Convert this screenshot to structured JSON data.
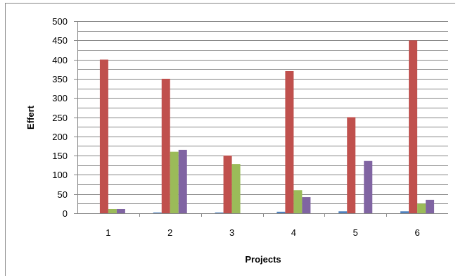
{
  "chart_data": {
    "type": "bar",
    "title": "",
    "xlabel": "Projects",
    "ylabel": "Effert",
    "categories": [
      "1",
      "2",
      "3",
      "4",
      "5",
      "6"
    ],
    "ylim": [
      0,
      500
    ],
    "ytick_step": 25,
    "ytick_label_step": 50,
    "grid": true,
    "legend": "none",
    "series": [
      {
        "color": "#4F81BD",
        "values": [
          0,
          2,
          2,
          4,
          5,
          5
        ]
      },
      {
        "color": "#C0504D",
        "values": [
          400,
          350,
          150,
          370,
          250,
          450
        ]
      },
      {
        "color": "#9BBB59",
        "values": [
          11,
          160,
          128,
          60,
          0,
          25
        ]
      },
      {
        "color": "#8064A2",
        "values": [
          11,
          165,
          0,
          42,
          136,
          35
        ]
      }
    ]
  }
}
